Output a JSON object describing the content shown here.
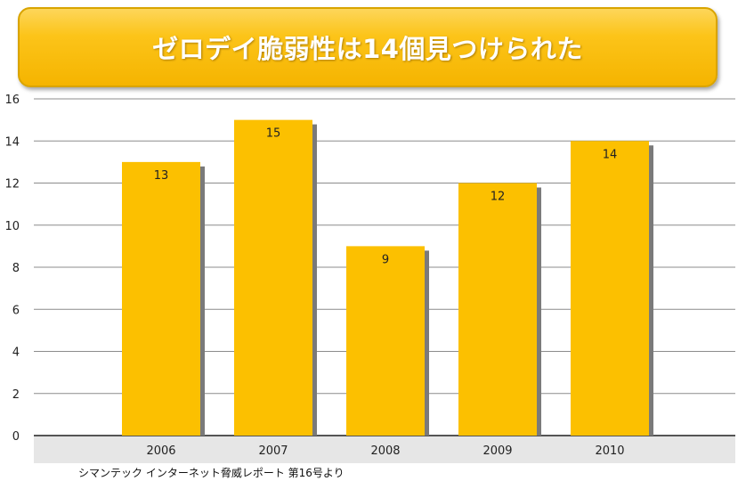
{
  "title": "ゼロデイ脆弱性は14個見つけられた",
  "source_note": "シマンテック インターネット脅威レポート 第16号より",
  "colors": {
    "bar": "#fcc000",
    "bar_shadow": "#7a7a7a",
    "gridline": "#8c8c8c",
    "axis_band": "#e6e6e6"
  },
  "chart_data": {
    "type": "bar",
    "categories": [
      "2006",
      "2007",
      "2008",
      "2009",
      "2010"
    ],
    "values": [
      13,
      15,
      9,
      12,
      14
    ],
    "data_labels": [
      "13",
      "15",
      "9",
      "12",
      "14"
    ],
    "ylim": [
      0,
      16
    ],
    "yticks": [
      0,
      2,
      4,
      6,
      8,
      10,
      12,
      14,
      16
    ],
    "xlabel": "",
    "ylabel": "",
    "grid": true,
    "legend": "none"
  }
}
